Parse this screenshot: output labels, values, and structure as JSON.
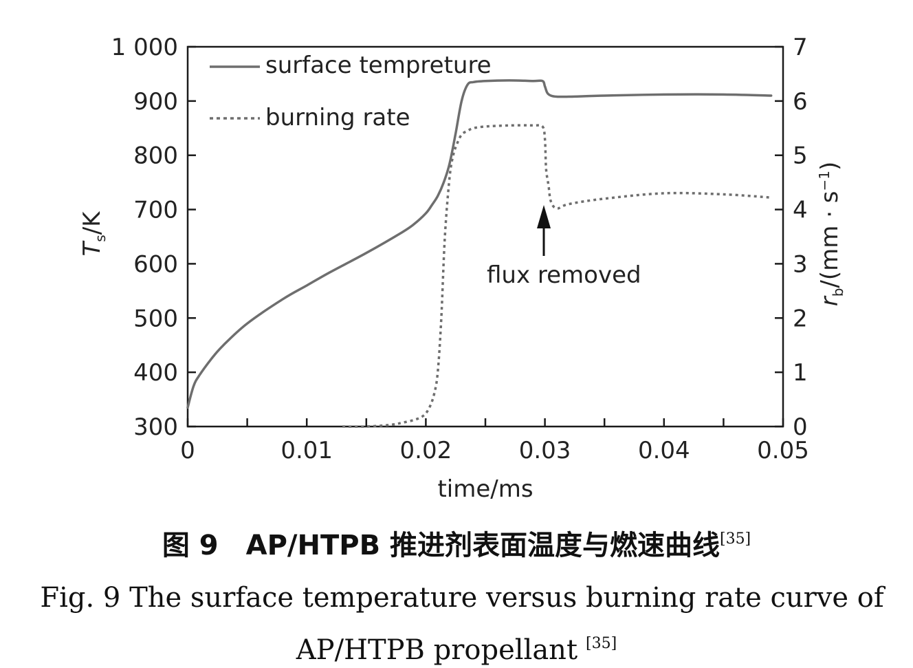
{
  "chart_data": {
    "type": "line",
    "xlabel": "time/ms",
    "ylabel_left": {
      "italic": "T",
      "sub": "s",
      "rest": "/K"
    },
    "ylabel_right": {
      "italic": "r",
      "sub": "b",
      "rest": "/(mm · s",
      "sup": "−1",
      "close": ")"
    },
    "xlim": [
      0,
      0.05
    ],
    "ylim_left": [
      300,
      1000
    ],
    "ylim_right": [
      0,
      7
    ],
    "x_ticks": [
      "0",
      "0.01",
      "0.02",
      "0.03",
      "0.04",
      "0.05"
    ],
    "y_left_ticks": [
      "300",
      "400",
      "500",
      "600",
      "700",
      "800",
      "900",
      "1 000"
    ],
    "y_right_ticks": [
      "0",
      "1",
      "2",
      "3",
      "4",
      "5",
      "6",
      "7"
    ],
    "grid": false,
    "legend_position": "top-left",
    "series": [
      {
        "name": "surface tempreture",
        "axis": "left",
        "style": "solid",
        "color": "#6e6e6e",
        "x": [
          0,
          0.0005,
          0.001,
          0.002,
          0.003,
          0.005,
          0.008,
          0.01,
          0.012,
          0.015,
          0.018,
          0.019,
          0.02,
          0.0205,
          0.021,
          0.0215,
          0.022,
          0.0225,
          0.023,
          0.0235,
          0.024,
          0.025,
          0.027,
          0.029,
          0.0298,
          0.03,
          0.0302,
          0.0305,
          0.031,
          0.032,
          0.035,
          0.04,
          0.045,
          0.049
        ],
        "y": [
          335,
          375,
          395,
          425,
          450,
          490,
          535,
          560,
          585,
          620,
          658,
          673,
          693,
          708,
          725,
          750,
          785,
          840,
          900,
          930,
          935,
          937,
          938,
          937,
          937,
          927,
          915,
          910,
          908,
          908,
          910,
          912,
          912,
          910
        ]
      },
      {
        "name": "burning rate",
        "axis": "right",
        "style": "dotted",
        "color": "#6e6e6e",
        "x": [
          0.013,
          0.015,
          0.017,
          0.018,
          0.019,
          0.0198,
          0.0203,
          0.0207,
          0.021,
          0.0213,
          0.0216,
          0.022,
          0.0223,
          0.0226,
          0.023,
          0.0235,
          0.024,
          0.025,
          0.027,
          0.029,
          0.0298,
          0.03,
          0.0301,
          0.0303,
          0.0305,
          0.031,
          0.032,
          0.035,
          0.04,
          0.045,
          0.049
        ],
        "y": [
          0.0,
          0.0,
          0.03,
          0.07,
          0.12,
          0.2,
          0.35,
          0.6,
          1.0,
          2.0,
          3.5,
          4.6,
          5.0,
          5.2,
          5.38,
          5.45,
          5.5,
          5.53,
          5.55,
          5.55,
          5.53,
          5.3,
          4.75,
          4.45,
          4.15,
          4.02,
          4.1,
          4.2,
          4.3,
          4.28,
          4.22
        ]
      }
    ],
    "annotations": [
      {
        "text": "flux removed",
        "arrow_x": 0.03,
        "arrow_y_right": 4.1
      }
    ]
  },
  "caption": {
    "cn_prefix": "图 9",
    "cn_main": "AP/HTPB 推进剂表面温度与燃速曲线",
    "cn_ref": "[35]",
    "en_line1": "Fig. 9    The surface temperature versus burning rate curve of",
    "en_line2": "AP/HTPB propellant",
    "en_ref": "[35]"
  }
}
